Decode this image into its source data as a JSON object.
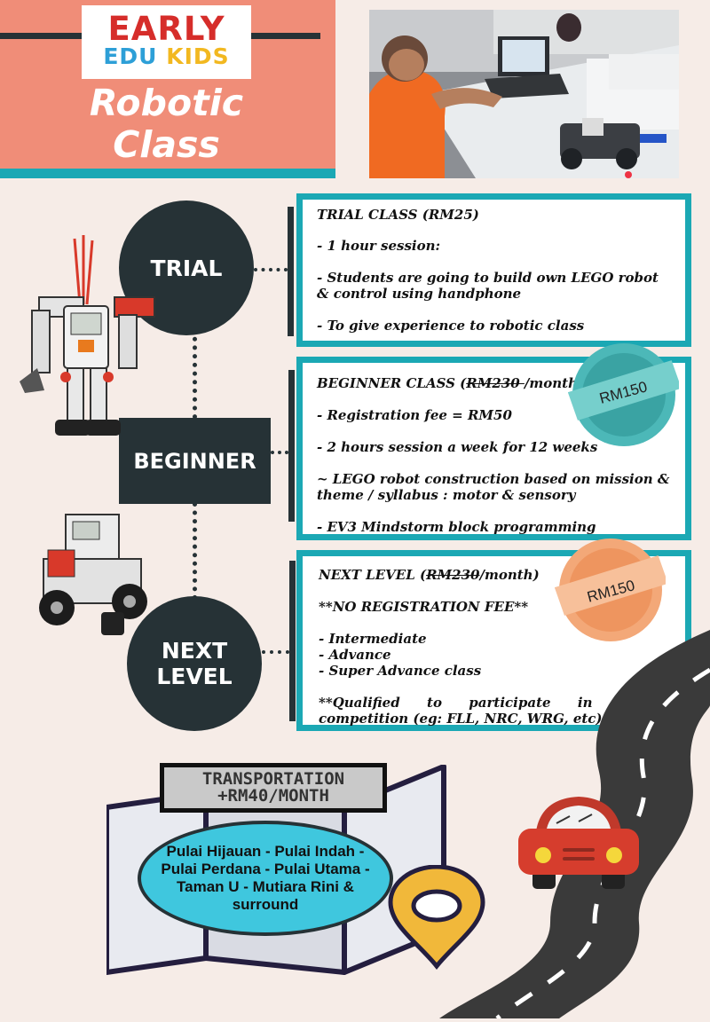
{
  "brand": {
    "line1": "EARLY",
    "line2_a": "EDU",
    "line2_b": "KIDS"
  },
  "header": {
    "title_line1": "Robotic",
    "title_line2": "Class"
  },
  "colors": {
    "salmon": "#f08d78",
    "teal": "#1ba8b4",
    "dark": "#263236",
    "cream": "#f6ece7",
    "badge_teal": "#4cb8b8",
    "badge_peach": "#f3a878",
    "pin_yellow": "#f1b83a"
  },
  "stages": {
    "trial": "TRIAL",
    "beginner": "BEGINNER",
    "next_line1": "NEXT",
    "next_line2": "LEVEL"
  },
  "cards": {
    "trial": {
      "title": "TRIAL CLASS (RM25)",
      "items": [
        "- 1 hour session:",
        "- Students are going to build own LEGO robot & control using handphone",
        "- To give experience to robotic class"
      ]
    },
    "beginner": {
      "title_prefix": "BEGINNER CLASS (",
      "title_old_price": "RM230 ",
      "title_suffix": "/month)",
      "badge": "RM150",
      "items": [
        "- Registration fee = RM50",
        "- 2 hours session a week for 12 weeks",
        "~ LEGO robot construction based on mission & theme / syllabus : motor & sensory",
        "- EV3 Mindstorm block programming"
      ]
    },
    "next": {
      "title_prefix": "NEXT LEVEL (",
      "title_old_price": "RM230",
      "title_suffix": "/month)",
      "badge": "RM150",
      "note": "**NO REGISTRATION FEE**",
      "levels": [
        "- Intermediate",
        "- Advance",
        "- Super Advance class"
      ],
      "footer": "**Qualified to participate in robotic competition (eg: FLL, NRC, WRG, etc)"
    }
  },
  "transport": {
    "line1": "TRANSPORTATION",
    "line2": "+RM40/MONTH",
    "areas": "Pulai Hijauan - Pulai Indah - Pulai Perdana - Pulai Utama - Taman U - Mutiara Rini & surround"
  },
  "icons": [
    "robot-humanoid-icon",
    "robot-vehicle-icon",
    "map-icon",
    "location-pin-icon",
    "car-icon",
    "road-icon"
  ]
}
